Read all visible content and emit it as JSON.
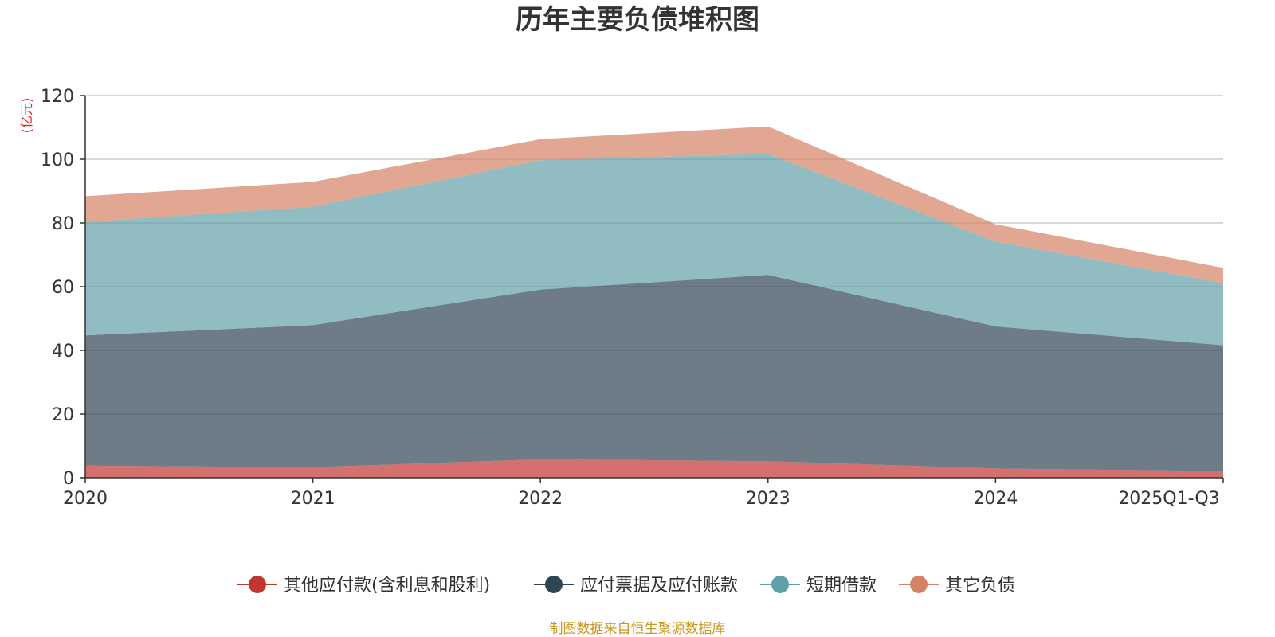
{
  "chart_data": {
    "type": "area",
    "stacked": true,
    "title": "历年主要负债堆积图",
    "y_unit": "(亿元)",
    "categories": [
      "2020",
      "2021",
      "2022",
      "2023",
      "2024",
      "2025Q1-Q3"
    ],
    "ylim": [
      0,
      120
    ],
    "yticks": [
      0,
      20,
      40,
      60,
      80,
      100,
      120
    ],
    "grid": true,
    "legend_position": "bottom",
    "series": [
      {
        "name": "其他应付款(含利息和股利)",
        "color": "#c23531",
        "values": [
          3.8,
          3.3,
          5.8,
          5.2,
          2.9,
          2.1
        ]
      },
      {
        "name": "应付票据及应付账款",
        "color": "#2f4554",
        "values": [
          40.9,
          44.6,
          53.3,
          58.5,
          44.6,
          39.5
        ]
      },
      {
        "name": "短期借款",
        "color": "#61a0a8",
        "values": [
          35.6,
          37.2,
          40.6,
          38.0,
          26.6,
          19.5
        ]
      },
      {
        "name": "其它负债",
        "color": "#d48265",
        "values": [
          8.1,
          7.8,
          6.6,
          8.6,
          5.5,
          4.8
        ]
      }
    ],
    "source": "制图数据来自恒生聚源数据库"
  }
}
